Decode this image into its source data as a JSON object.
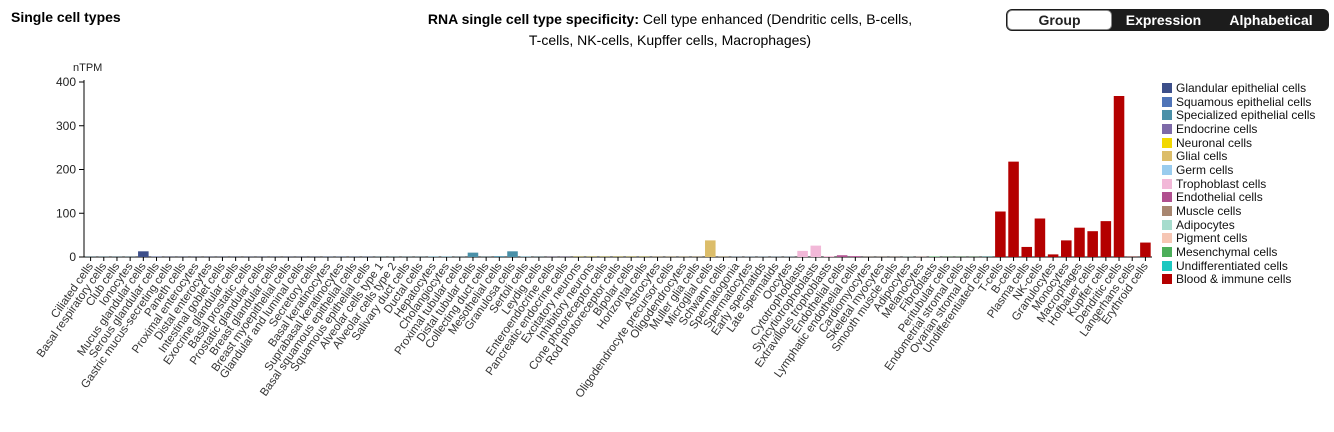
{
  "header": {
    "section_title": "Single cell types",
    "chart_title_bold": "RNA single cell type specificity:",
    "chart_title_rest": " Cell type enhanced (Dendritic cells, B-cells, T-cells, NK-cells, Kupffer cells, Macrophages)"
  },
  "sort_toggle": {
    "options": [
      "Group",
      "Expression",
      "Alphabetical"
    ],
    "active": "Group"
  },
  "legend": [
    {
      "label": "Glandular epithelial cells",
      "color": "#3d4f8a"
    },
    {
      "label": "Squamous epithelial cells",
      "color": "#4f74b8"
    },
    {
      "label": "Specialized epithelial cells",
      "color": "#4a90a8"
    },
    {
      "label": "Endocrine cells",
      "color": "#7e6aa8"
    },
    {
      "label": "Neuronal cells",
      "color": "#f2d800"
    },
    {
      "label": "Glial cells",
      "color": "#dcbd6a"
    },
    {
      "label": "Germ cells",
      "color": "#99ccee"
    },
    {
      "label": "Trophoblast cells",
      "color": "#f2b8d8"
    },
    {
      "label": "Endothelial cells",
      "color": "#b04f8f"
    },
    {
      "label": "Muscle cells",
      "color": "#a88670"
    },
    {
      "label": "Adipocytes",
      "color": "#a6dccd"
    },
    {
      "label": "Pigment cells",
      "color": "#f6c6b4"
    },
    {
      "label": "Mesenchymal cells",
      "color": "#4cae5a"
    },
    {
      "label": "Undifferentiated cells",
      "color": "#1cc8c0"
    },
    {
      "label": "Blood & immune cells",
      "color": "#b40000"
    }
  ],
  "chart_data": {
    "type": "bar",
    "ylabel": "nTPM",
    "ylim": [
      0,
      400
    ],
    "yticks": [
      0,
      100,
      200,
      300,
      400
    ],
    "grid": false,
    "categories": [
      {
        "label": "Ciliated cells",
        "value": 0.5,
        "group": 2
      },
      {
        "label": "Basal respiratory cells",
        "value": 0.5,
        "group": 2
      },
      {
        "label": "Club cells",
        "value": 0.5,
        "group": 2
      },
      {
        "label": "Ionocytes",
        "value": 0.5,
        "group": 2
      },
      {
        "label": "Mucus glandular cells",
        "value": 13,
        "group": 0
      },
      {
        "label": "Serous glandular cells",
        "value": 1,
        "group": 0
      },
      {
        "label": "Gastric mucus-secreting cells",
        "value": 0.5,
        "group": 0
      },
      {
        "label": "Paneth cells",
        "value": 0.5,
        "group": 0
      },
      {
        "label": "Proximal enterocytes",
        "value": 0.5,
        "group": 0
      },
      {
        "label": "Distal enterocytes",
        "value": 0.5,
        "group": 0
      },
      {
        "label": "Intestinal goblet cells",
        "value": 0.5,
        "group": 0
      },
      {
        "label": "Exocrine glandular cells",
        "value": 0.5,
        "group": 0
      },
      {
        "label": "Basal prostatic cells",
        "value": 0.5,
        "group": 0
      },
      {
        "label": "Prostatic glandular cells",
        "value": 0.5,
        "group": 0
      },
      {
        "label": "Breast glandular cells",
        "value": 0.5,
        "group": 0
      },
      {
        "label": "Breast myoepithelial cells",
        "value": 0.5,
        "group": 0
      },
      {
        "label": "Glandular and luminal cells",
        "value": 0.5,
        "group": 0
      },
      {
        "label": "Secretory cells",
        "value": 0.5,
        "group": 0
      },
      {
        "label": "Basal keratinocytes",
        "value": 0.5,
        "group": 1
      },
      {
        "label": "Suprabasal keratinocytes",
        "value": 0.5,
        "group": 1
      },
      {
        "label": "Basal squamous epithelial cells",
        "value": 0.5,
        "group": 1
      },
      {
        "label": "Squamous epithelial cells",
        "value": 0.5,
        "group": 1
      },
      {
        "label": "Alveolar cells type 1",
        "value": 0.5,
        "group": 2
      },
      {
        "label": "Alveolar cells type 2",
        "value": 0.5,
        "group": 2
      },
      {
        "label": "Salivary duct cells",
        "value": 0.5,
        "group": 2
      },
      {
        "label": "Ductal cells",
        "value": 0.5,
        "group": 2
      },
      {
        "label": "Hepatocytes",
        "value": 1,
        "group": 2
      },
      {
        "label": "Cholangiocytes",
        "value": 1,
        "group": 2
      },
      {
        "label": "Proximal tubular cells",
        "value": 0.5,
        "group": 2
      },
      {
        "label": "Distal tubular cells",
        "value": 10,
        "group": 2
      },
      {
        "label": "Collecting duct cells",
        "value": 0.5,
        "group": 2
      },
      {
        "label": "Mesothelial cells",
        "value": 2,
        "group": 2
      },
      {
        "label": "Granulosa cells",
        "value": 13,
        "group": 2
      },
      {
        "label": "Sertoli cells",
        "value": 1,
        "group": 2
      },
      {
        "label": "Leydig cells",
        "value": 0.5,
        "group": 2
      },
      {
        "label": "Enteroendocrine cells",
        "value": 0.5,
        "group": 3
      },
      {
        "label": "Pancreatic endocrine cells",
        "value": 0.5,
        "group": 3
      },
      {
        "label": "Excitatory neurons",
        "value": 0.5,
        "group": 4
      },
      {
        "label": "Inhibitory neurons",
        "value": 0.5,
        "group": 4
      },
      {
        "label": "Cone photoreceptor cells",
        "value": 0.5,
        "group": 4
      },
      {
        "label": "Rod photoreceptor cells",
        "value": 0.5,
        "group": 4
      },
      {
        "label": "Bipolar cells",
        "value": 0.5,
        "group": 4
      },
      {
        "label": "Horizontal cells",
        "value": 0.5,
        "group": 4
      },
      {
        "label": "Astrocytes",
        "value": 0.5,
        "group": 5
      },
      {
        "label": "Oligodendrocyte precursor cells",
        "value": 0.5,
        "group": 5
      },
      {
        "label": "Oligodendrocytes",
        "value": 0.5,
        "group": 5
      },
      {
        "label": "Muller glia cells",
        "value": 0.5,
        "group": 5
      },
      {
        "label": "Microglial cells",
        "value": 38,
        "group": 5
      },
      {
        "label": "Schwann cells",
        "value": 0.5,
        "group": 5
      },
      {
        "label": "Spermatogonia",
        "value": 0.5,
        "group": 6
      },
      {
        "label": "Spermatocytes",
        "value": 0.5,
        "group": 6
      },
      {
        "label": "Early spermatids",
        "value": 0.5,
        "group": 6
      },
      {
        "label": "Late spermatids",
        "value": 0.5,
        "group": 6
      },
      {
        "label": "Oocytes",
        "value": 0.5,
        "group": 6
      },
      {
        "label": "Cytotrophoblasts",
        "value": 14,
        "group": 7
      },
      {
        "label": "Syncytiotrophoblasts",
        "value": 26,
        "group": 7
      },
      {
        "label": "Extravillous trophoblasts",
        "value": 2,
        "group": 7
      },
      {
        "label": "Endothelial cells",
        "value": 4,
        "group": 8
      },
      {
        "label": "Lymphatic endothelial cells",
        "value": 2,
        "group": 8
      },
      {
        "label": "Cardiomyocytes",
        "value": 0.5,
        "group": 9
      },
      {
        "label": "Skeletal myocytes",
        "value": 0.5,
        "group": 9
      },
      {
        "label": "Smooth muscle cells",
        "value": 0.5,
        "group": 9
      },
      {
        "label": "Adipocytes",
        "value": 0.5,
        "group": 10
      },
      {
        "label": "Melanocytes",
        "value": 0.5,
        "group": 11
      },
      {
        "label": "Fibroblasts",
        "value": 1,
        "group": 12
      },
      {
        "label": "Peritubular cells",
        "value": 0.5,
        "group": 12
      },
      {
        "label": "Endometrial stromal cells",
        "value": 0.5,
        "group": 12
      },
      {
        "label": "Ovarian stromal cells",
        "value": 0.5,
        "group": 12
      },
      {
        "label": "Undifferentiated cells",
        "value": 0.5,
        "group": 13
      },
      {
        "label": "T-cells",
        "value": 104,
        "group": 14
      },
      {
        "label": "B-cells",
        "value": 218,
        "group": 14
      },
      {
        "label": "Plasma cells",
        "value": 23,
        "group": 14
      },
      {
        "label": "NK-cells",
        "value": 88,
        "group": 14
      },
      {
        "label": "Granulocytes",
        "value": 6,
        "group": 14
      },
      {
        "label": "Monocytes",
        "value": 38,
        "group": 14
      },
      {
        "label": "Macrophages",
        "value": 67,
        "group": 14
      },
      {
        "label": "Hofbauer cells",
        "value": 59,
        "group": 14
      },
      {
        "label": "Kupffer cells",
        "value": 82,
        "group": 14
      },
      {
        "label": "Dendritic cells",
        "value": 368,
        "group": 14
      },
      {
        "label": "Langerhans cells",
        "value": 0.5,
        "group": 14
      },
      {
        "label": "Erythroid cells",
        "value": 33,
        "group": 14
      }
    ]
  }
}
